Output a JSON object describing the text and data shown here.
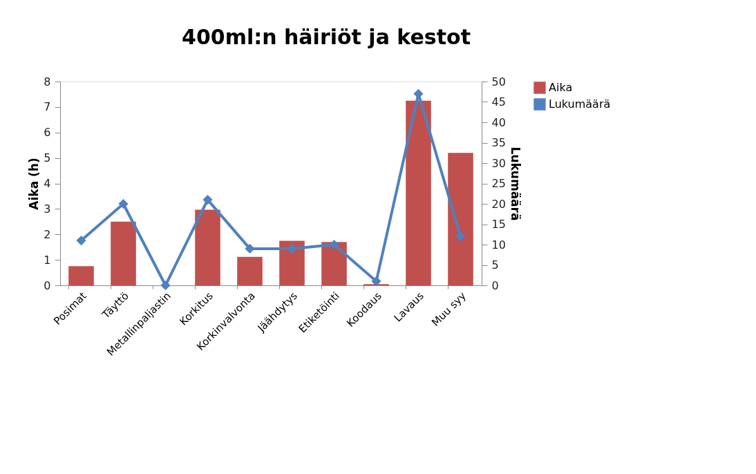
{
  "chart_data": {
    "type": "bar",
    "title": "400ml:n häiriöt ja kestot",
    "ylabel": "Aika (h)",
    "y2label": "Lukumäärä",
    "categories": [
      "Posimat",
      "Täyttö",
      "Metallinpaljastin",
      "Korkitus",
      "Korkinvalvonta",
      "Jäähdytys",
      "Etiketöinti",
      "Koodaus",
      "Lavaus",
      "Muu syy"
    ],
    "series": [
      {
        "name": "Aika",
        "color": "#c0504d",
        "values": [
          0.75,
          2.5,
          0,
          2.97,
          1.12,
          1.75,
          1.7,
          0.05,
          7.25,
          5.2
        ]
      },
      {
        "name": "Lukumäärä",
        "type": "line",
        "axis": "y2",
        "color": "#4f81bd",
        "values": [
          11,
          20,
          0,
          21,
          9,
          9,
          10,
          1,
          47,
          12
        ]
      }
    ],
    "ylim": [
      0,
      8
    ],
    "yticks": [
      0,
      1,
      2,
      3,
      4,
      5,
      6,
      7,
      8
    ],
    "y2lim": [
      0,
      50
    ],
    "y2ticks": [
      0,
      5,
      10,
      15,
      20,
      25,
      30,
      35,
      40,
      45,
      50
    ],
    "marker": "diamond",
    "line_style": "solid",
    "grid": false,
    "legend": "right"
  }
}
